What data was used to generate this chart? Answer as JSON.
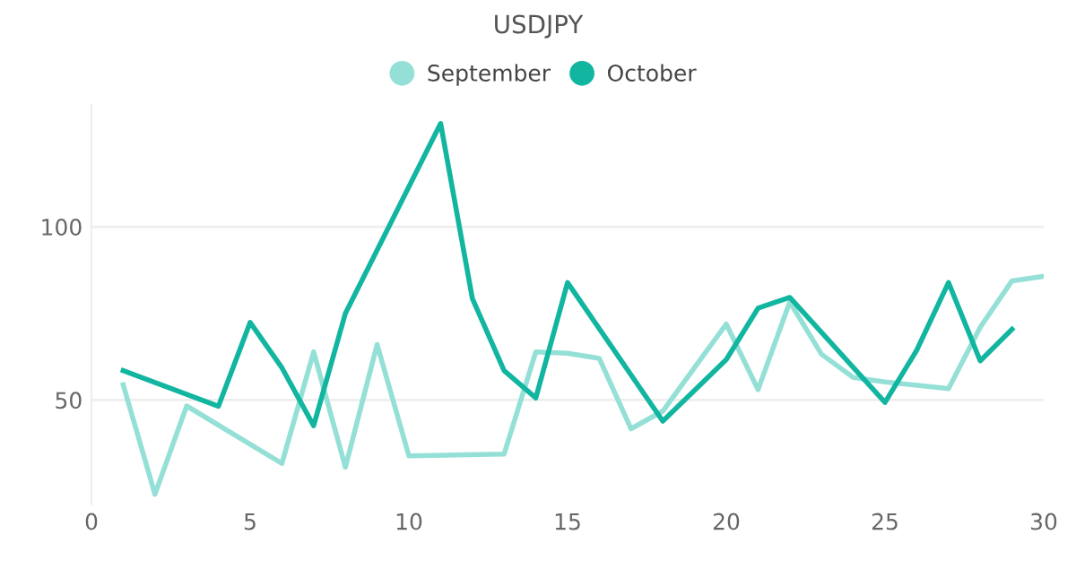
{
  "chart_data": {
    "type": "line",
    "title": "USDJPY",
    "legend": "top",
    "grid": "y",
    "xlim": [
      0,
      30
    ],
    "xticks": [
      0,
      5,
      10,
      15,
      20,
      25,
      30
    ],
    "ylim": [
      20,
      135
    ],
    "yticks": [
      50,
      100
    ],
    "series": [
      {
        "name": "September",
        "color": "#94e0d6",
        "x": [
          1,
          2,
          3,
          6,
          7,
          8,
          9,
          10,
          13,
          14,
          15,
          16,
          17,
          18,
          20,
          21,
          22,
          23,
          24,
          25,
          27,
          28,
          29,
          30
        ],
        "values": [
          54.4,
          22.8,
          48.3,
          31.7,
          63.9,
          30.6,
          66,
          33.9,
          34.4,
          63.9,
          63.5,
          62,
          41.7,
          46.8,
          71.9,
          53,
          78.3,
          63.2,
          56.5,
          55.2,
          53.3,
          71,
          84.4,
          85.7
        ]
      },
      {
        "name": "October",
        "color": "#11b5a0",
        "x": [
          1,
          4,
          5,
          6,
          7,
          8,
          11,
          12,
          13,
          14,
          15,
          18,
          20,
          21,
          22,
          25,
          26,
          27,
          28,
          29
        ],
        "values": [
          58.5,
          48.2,
          72.4,
          59.3,
          42.6,
          75,
          129.8,
          79.3,
          58.5,
          50.6,
          83.9,
          43.9,
          61.7,
          76.5,
          79.6,
          49.3,
          64.4,
          83.9,
          61.3,
          70.4
        ]
      }
    ]
  }
}
